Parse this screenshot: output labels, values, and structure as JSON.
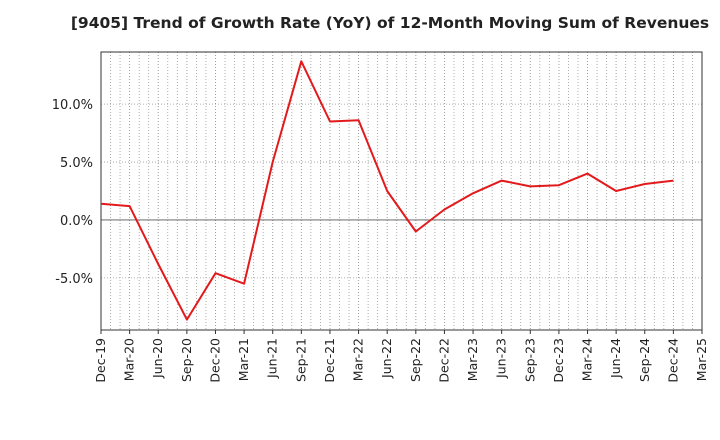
{
  "chart_data": {
    "type": "line",
    "title": "[9405]  Trend of Growth Rate (YoY) of 12-Month Moving Sum of Revenues",
    "xlabel": "",
    "ylabel": "",
    "categories": [
      "Dec-19",
      "Mar-20",
      "Jun-20",
      "Sep-20",
      "Dec-20",
      "Mar-21",
      "Jun-21",
      "Sep-21",
      "Dec-21",
      "Mar-22",
      "Jun-22",
      "Sep-22",
      "Dec-22",
      "Mar-23",
      "Jun-23",
      "Sep-23",
      "Dec-23",
      "Mar-24",
      "Jun-24",
      "Sep-24",
      "Dec-24",
      "Mar-25"
    ],
    "series": [
      {
        "color": "#e31a1c",
        "values": [
          1.4,
          1.2,
          -3.8,
          -8.6,
          -4.6,
          -5.5,
          5.0,
          13.7,
          8.5,
          8.6,
          2.5,
          -1.0,
          0.9,
          2.3,
          3.4,
          2.9,
          3.0,
          4.0,
          2.5,
          3.1,
          3.4,
          null
        ]
      }
    ],
    "ylim": [
      -9.5,
      14.5
    ],
    "yticks": [
      -5.0,
      0.0,
      5.0,
      10.0
    ],
    "ytick_labels": [
      "-5.0%",
      "0.0%",
      "5.0%",
      "10.0%"
    ],
    "grid": true,
    "legend": "none"
  }
}
